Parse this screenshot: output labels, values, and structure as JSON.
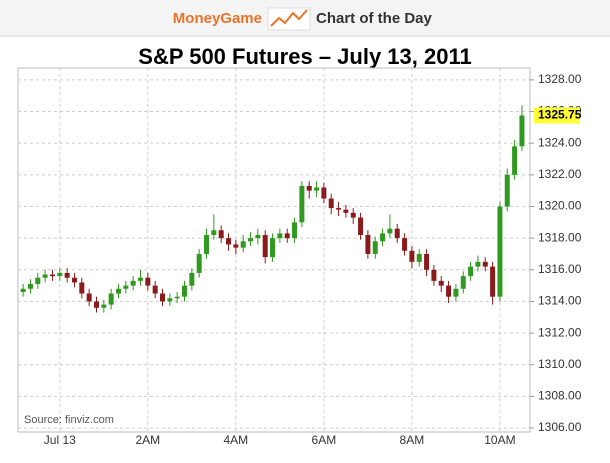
{
  "header": {
    "brand": "MoneyGame",
    "tagline": "Chart of the Day"
  },
  "chart_data": {
    "type": "candlestick",
    "title": "S&P 500 Futures – July 13, 2011",
    "source": "Source: finviz.com",
    "x": [
      -50,
      -40,
      -30,
      -20,
      -10,
      0,
      10,
      20,
      30,
      40,
      50,
      60,
      70,
      80,
      90,
      100,
      110,
      120,
      130,
      140,
      150,
      160,
      170,
      180,
      190,
      200,
      210,
      220,
      230,
      240,
      250,
      260,
      270,
      280,
      290,
      300,
      310,
      320,
      330,
      340,
      350,
      360,
      370,
      380,
      390,
      400,
      410,
      420,
      430,
      440,
      450,
      460,
      470,
      480,
      490,
      500,
      510,
      520,
      530,
      540,
      550,
      560,
      570,
      580,
      590,
      600,
      610,
      620,
      630
    ],
    "open": [
      1314.6,
      1314.8,
      1315.1,
      1315.5,
      1315.7,
      1315.6,
      1315.8,
      1315.5,
      1315.2,
      1314.5,
      1314.0,
      1313.6,
      1313.8,
      1314.5,
      1314.8,
      1315.0,
      1315.3,
      1315.5,
      1315.0,
      1314.5,
      1314.0,
      1314.2,
      1314.3,
      1315.0,
      1315.8,
      1317.0,
      1318.2,
      1318.5,
      1318.0,
      1317.6,
      1317.4,
      1317.8,
      1318.0,
      1318.2,
      1316.8,
      1318.0,
      1318.3,
      1318.0,
      1319.0,
      1321.3,
      1321.0,
      1321.2,
      1320.5,
      1319.9,
      1319.8,
      1319.6,
      1319.3,
      1318.2,
      1317.0,
      1317.8,
      1318.3,
      1318.6,
      1318.0,
      1317.2,
      1316.5,
      1317.0,
      1316.0,
      1315.3,
      1315.0,
      1314.3,
      1314.8,
      1315.6,
      1316.2,
      1316.5,
      1316.2,
      1314.3,
      1320.0,
      1322.0,
      1323.8
    ],
    "high": [
      1315.1,
      1315.4,
      1315.8,
      1316.0,
      1316.0,
      1316.1,
      1316.1,
      1315.8,
      1315.5,
      1314.8,
      1314.3,
      1314.1,
      1314.8,
      1315.1,
      1315.3,
      1315.6,
      1316.0,
      1315.8,
      1315.3,
      1314.8,
      1314.5,
      1314.6,
      1315.3,
      1316.1,
      1317.3,
      1318.6,
      1319.5,
      1318.8,
      1318.3,
      1317.9,
      1318.2,
      1318.4,
      1318.6,
      1318.5,
      1318.3,
      1318.6,
      1318.6,
      1319.3,
      1321.6,
      1321.6,
      1321.6,
      1321.5,
      1320.8,
      1320.3,
      1320.1,
      1319.9,
      1319.6,
      1318.5,
      1318.1,
      1318.6,
      1319.5,
      1318.9,
      1318.3,
      1317.5,
      1317.3,
      1317.3,
      1316.3,
      1315.6,
      1315.3,
      1315.1,
      1315.9,
      1316.5,
      1316.9,
      1316.8,
      1316.5,
      1320.3,
      1322.4,
      1324.2,
      1326.4
    ],
    "low": [
      1314.3,
      1314.5,
      1314.8,
      1315.2,
      1315.3,
      1315.3,
      1315.2,
      1314.9,
      1314.2,
      1313.7,
      1313.3,
      1313.3,
      1313.5,
      1314.2,
      1314.5,
      1314.7,
      1315.0,
      1314.7,
      1314.2,
      1313.7,
      1313.7,
      1313.9,
      1314.0,
      1314.7,
      1315.5,
      1316.7,
      1317.9,
      1317.7,
      1317.2,
      1317.0,
      1317.1,
      1317.5,
      1317.6,
      1316.4,
      1316.5,
      1317.7,
      1317.7,
      1317.7,
      1318.7,
      1320.5,
      1320.6,
      1320.2,
      1319.5,
      1319.4,
      1319.3,
      1318.9,
      1317.9,
      1316.7,
      1316.7,
      1317.5,
      1318.0,
      1317.7,
      1316.9,
      1316.1,
      1316.2,
      1315.6,
      1315.0,
      1314.6,
      1313.9,
      1314.0,
      1314.5,
      1315.3,
      1315.9,
      1315.9,
      1313.8,
      1314.0,
      1319.7,
      1321.7,
      1323.5
    ],
    "close": [
      1314.8,
      1315.1,
      1315.5,
      1315.7,
      1315.6,
      1315.8,
      1315.5,
      1315.2,
      1314.5,
      1314.0,
      1313.6,
      1313.8,
      1314.5,
      1314.8,
      1315.0,
      1315.3,
      1315.5,
      1315.0,
      1314.5,
      1314.0,
      1314.2,
      1314.3,
      1315.0,
      1315.8,
      1317.0,
      1318.2,
      1318.5,
      1318.0,
      1317.6,
      1317.4,
      1317.8,
      1318.0,
      1318.2,
      1316.8,
      1318.0,
      1318.3,
      1318.0,
      1319.0,
      1321.3,
      1321.0,
      1321.2,
      1320.5,
      1319.9,
      1319.8,
      1319.6,
      1319.3,
      1318.2,
      1317.0,
      1317.8,
      1318.3,
      1318.6,
      1318.0,
      1317.2,
      1316.5,
      1317.0,
      1316.0,
      1315.3,
      1315.0,
      1314.3,
      1314.8,
      1315.6,
      1316.2,
      1316.5,
      1316.2,
      1314.3,
      1320.0,
      1322.0,
      1323.8,
      1325.75
    ],
    "up_color": "#2f9a1f",
    "down_color": "#8b1a1a",
    "xlim": [
      -57,
      641
    ],
    "xticks": [
      {
        "value": 0,
        "label": "Jul 13"
      },
      {
        "value": 120,
        "label": "2AM"
      },
      {
        "value": 240,
        "label": "4AM"
      },
      {
        "value": 360,
        "label": "6AM"
      },
      {
        "value": 480,
        "label": "8AM"
      },
      {
        "value": 600,
        "label": "10AM"
      }
    ],
    "ylim": [
      1305.75,
      1328.75
    ],
    "yticks": [
      {
        "value": 1306,
        "label": "1306.00"
      },
      {
        "value": 1308,
        "label": "1308.00"
      },
      {
        "value": 1310,
        "label": "1310.00"
      },
      {
        "value": 1312,
        "label": "1312.00"
      },
      {
        "value": 1314,
        "label": "1314.00"
      },
      {
        "value": 1316,
        "label": "1316.00"
      },
      {
        "value": 1318,
        "label": "1318.00"
      },
      {
        "value": 1320,
        "label": "1320.00"
      },
      {
        "value": 1322,
        "label": "1322.00"
      },
      {
        "value": 1324,
        "label": "1324.00"
      },
      {
        "value": 1326,
        "label": "1326.00"
      },
      {
        "value": 1328,
        "label": "1328.00"
      }
    ],
    "grid": true
  }
}
